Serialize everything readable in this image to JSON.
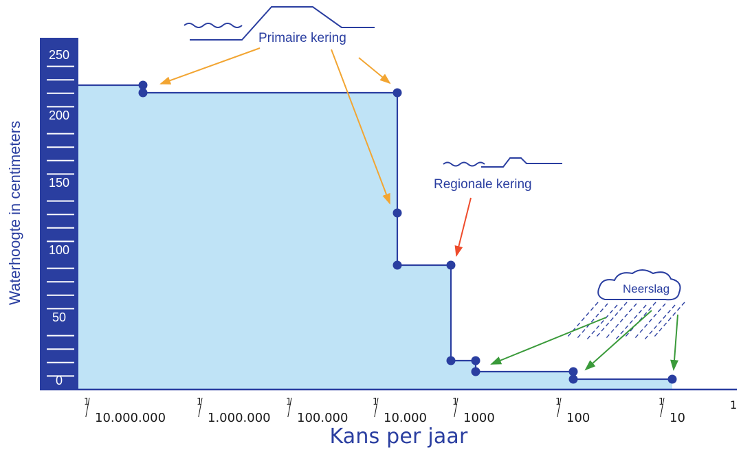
{
  "chart_data": {
    "type": "step-area",
    "y_axis": {
      "label": "Waterhoogte in centimeters",
      "range": [
        0,
        260
      ],
      "ticks": [
        "0",
        "50",
        "100",
        "150",
        "200",
        "250"
      ]
    },
    "x_axis": {
      "label": "Kans per jaar",
      "scale": "log",
      "ticks": [
        {
          "num": "1",
          "den": "10.000.000"
        },
        {
          "num": "1",
          "den": "1.000.000"
        },
        {
          "num": "1",
          "den": "100.000"
        },
        {
          "num": "1",
          "den": "10.000"
        },
        {
          "num": "1",
          "den": "1000"
        },
        {
          "num": "1",
          "den": "100"
        },
        {
          "num": "1",
          "den": "10"
        }
      ],
      "end_tick": "1"
    },
    "steps": [
      {
        "from": "1/30.000.000",
        "to": "1/30.000.000",
        "height": 224
      },
      {
        "from": "1/30.000.000",
        "to": "1/15.000",
        "height": 220
      },
      {
        "from": "1/15.000",
        "to": "1/15.000",
        "height": 135
      },
      {
        "from": "1/15.000",
        "to": "1/1250",
        "height": 93
      },
      {
        "from": "1/1250",
        "to": "1/700",
        "height": 18
      },
      {
        "from": "1/700",
        "to": "1/80",
        "height": 12
      },
      {
        "from": "1/80",
        "to": "1/8",
        "height": 7
      }
    ],
    "annotations": [
      {
        "text": "Primaire kering"
      },
      {
        "text": "Regionale kering"
      },
      {
        "text": "Neerslag"
      }
    ],
    "colors": {
      "axis_band": "#2a3ea0",
      "fill": "#bfe3f6",
      "line": "#2a3ea0",
      "arrow_primaire": "#f2a532",
      "arrow_regionaal": "#ee4b2b",
      "arrow_neerslag": "#3a9a3a"
    }
  }
}
